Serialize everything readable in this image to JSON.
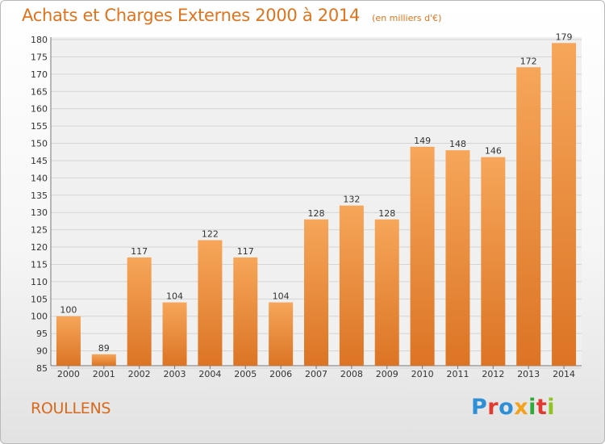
{
  "header": {
    "title": "Achats et Charges Externes 2000 à 2014",
    "subtitle": "(en milliers d'€)"
  },
  "footer": {
    "commune": "ROULLENS",
    "logo_text": "Proxiti",
    "logo_colors": [
      "#2f8fd6",
      "#e23a2e",
      "#2f8fd6",
      "#f4a21b",
      "#2faa3a",
      "#e23a2e",
      "#8fc31f"
    ]
  },
  "chart_data": {
    "type": "bar",
    "title": "Achats et Charges Externes 2000 à 2014",
    "subtitle": "(en milliers d'€)",
    "xlabel": "",
    "ylabel": "",
    "categories": [
      "2000",
      "2001",
      "2002",
      "2003",
      "2004",
      "2005",
      "2006",
      "2007",
      "2008",
      "2009",
      "2010",
      "2011",
      "2012",
      "2013",
      "2014"
    ],
    "values": [
      100,
      89,
      117,
      104,
      122,
      117,
      104,
      128,
      132,
      128,
      149,
      148,
      146,
      172,
      179
    ],
    "ylim": [
      85,
      180
    ],
    "yticks": [
      85,
      90,
      95,
      100,
      105,
      110,
      115,
      120,
      125,
      130,
      135,
      140,
      145,
      150,
      155,
      160,
      165,
      170,
      175,
      180
    ],
    "grid": true,
    "legend": "none",
    "colors": {
      "bar_light": "#f6a65a",
      "bar_dark": "#dc7424",
      "grid": "#d4d4d4",
      "axis": "#777777",
      "text": "#333333",
      "plot_bg": "#f0f0f0"
    }
  }
}
